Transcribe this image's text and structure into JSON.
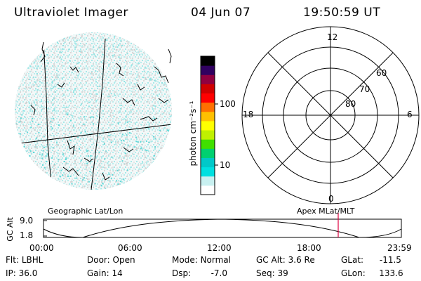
{
  "header": {
    "instrument": "Ultraviolet Imager",
    "date": "04 Jun 07",
    "time": "19:50:59 UT"
  },
  "colorbar": {
    "unit_label": "photon cm⁻²s⁻¹",
    "tick_labels": [
      "100",
      "10"
    ],
    "colors": [
      "#ffffff",
      "#c8f0f0",
      "#00e0e0",
      "#00c8c8",
      "#00d070",
      "#40e000",
      "#c0f000",
      "#ffff00",
      "#ffc000",
      "#ff7000",
      "#ff0000",
      "#d00000",
      "#900040",
      "#300060",
      "#000000"
    ]
  },
  "polar_plot": {
    "mlt_labels": {
      "top": "12",
      "left": "18",
      "right": "6",
      "bottom": "0"
    },
    "lat_labels": [
      "60",
      "70",
      "80"
    ]
  },
  "timeline": {
    "ylabel": "GC Alt",
    "y_ticks": [
      "9.0",
      "1.8"
    ],
    "left_title": "Geographic Lat/Lon",
    "right_title": "Apex MLat/MLT",
    "x_ticks": [
      "00:00",
      "06:00",
      "12:00",
      "18:00",
      "23:59"
    ],
    "current_marker_color": "#e00040"
  },
  "status": {
    "row1": [
      {
        "key": "Flt:",
        "value": "LBHL"
      },
      {
        "key": "Door:",
        "value": "Open"
      },
      {
        "key": "Mode:",
        "value": "Normal"
      },
      {
        "key": "GC Alt:",
        "value": "3.6 Re"
      },
      {
        "key": "GLat:",
        "value": "-11.5"
      }
    ],
    "row2": [
      {
        "key": "IP:",
        "value": "36.0"
      },
      {
        "key": "Gain:",
        "value": "14"
      },
      {
        "key": "Dsp:",
        "value": "-7.0"
      },
      {
        "key": "Seq:",
        "value": "39"
      },
      {
        "key": "GLon:",
        "value": "133.6"
      }
    ]
  }
}
